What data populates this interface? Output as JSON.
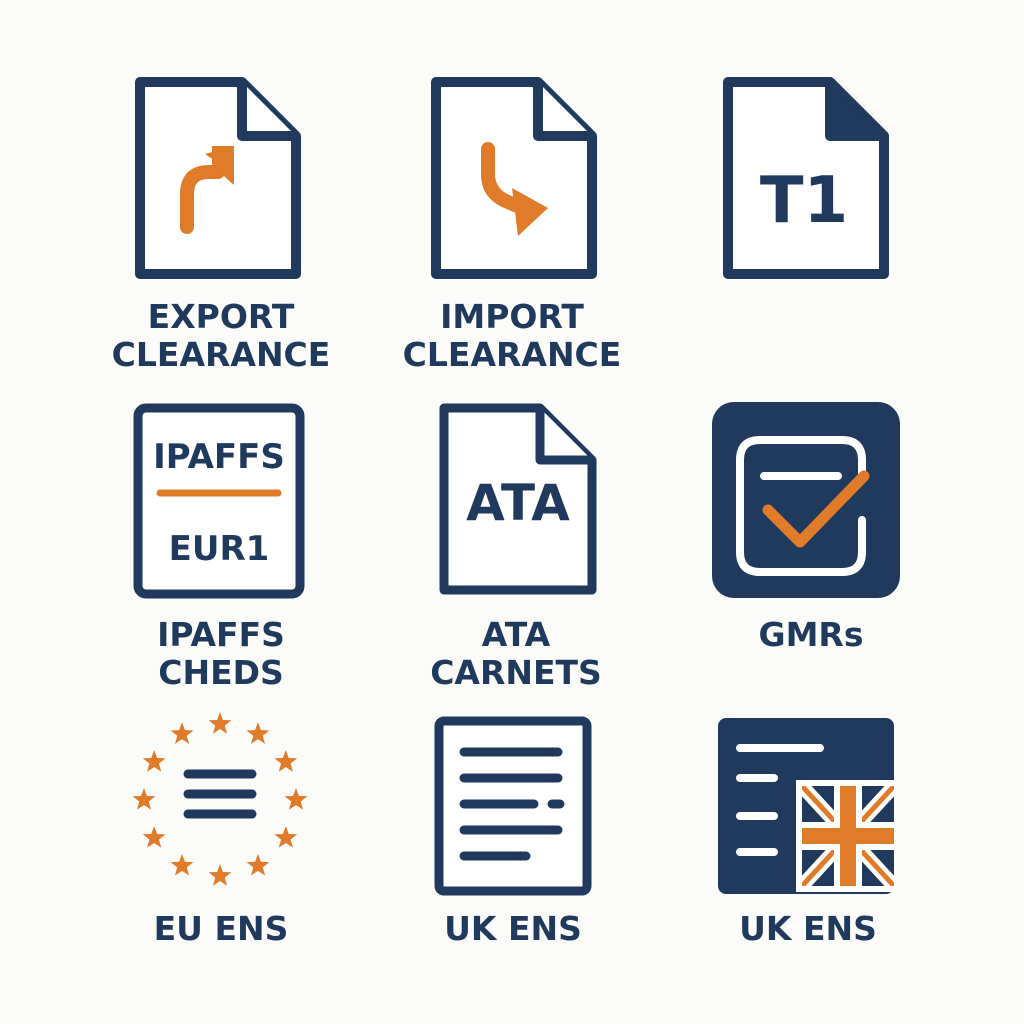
{
  "colors": {
    "navy": "#1f3a5c",
    "orange": "#e07b2a",
    "background": "#fbfbf9",
    "paper": "#ffffff"
  },
  "tiles": [
    {
      "icon": "export-arrow-document-icon",
      "label_lines": [
        "EXPORT",
        "CLEARANCE"
      ]
    },
    {
      "icon": "import-arrow-document-icon",
      "label_lines": [
        "IMPORT",
        "CLEARANCE"
      ]
    },
    {
      "icon": "t1-document-icon",
      "icon_text": "T1",
      "label_lines": []
    },
    {
      "icon": "ipaffs-eur1-document-icon",
      "icon_text_top": "IPAFFS",
      "icon_text_bottom": "EUR1",
      "label_lines": [
        "IPAFFS",
        "CHEDS"
      ]
    },
    {
      "icon": "ata-document-icon",
      "icon_text": "ATA",
      "label_lines": [
        "ATA",
        "CARNETS"
      ]
    },
    {
      "icon": "checkbox-tick-icon",
      "label_lines": [
        "GMRs"
      ]
    },
    {
      "icon": "eu-stars-lines-icon",
      "label_lines": [
        "EU ENS"
      ]
    },
    {
      "icon": "text-lines-document-icon",
      "label_lines": [
        "UK ENS"
      ]
    },
    {
      "icon": "uk-flag-panel-icon",
      "label_lines": [
        "UK ENS"
      ]
    }
  ]
}
